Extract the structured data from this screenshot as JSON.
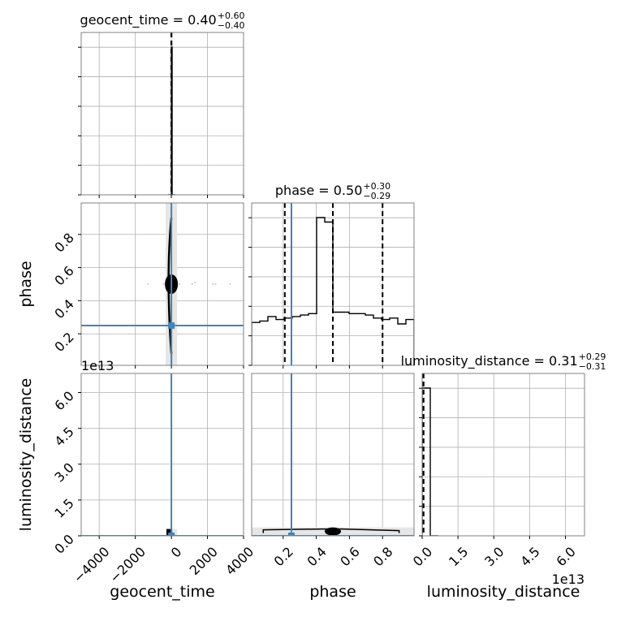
{
  "chart_data": {
    "type": "corner",
    "parameters": [
      "geocent_time",
      "phase",
      "luminosity_distance"
    ],
    "axis_labels": {
      "geocent_time": "geocent_time",
      "phase": "phase",
      "luminosity_distance": "luminosity_distance"
    },
    "ranges": {
      "geocent_time": [
        -5000,
        4000
      ],
      "phase": [
        0.01,
        0.99
      ],
      "luminosity_distance": [
        0,
        68000000000000.0
      ]
    },
    "truths": {
      "geocent_time": 0.0,
      "phase": 0.25,
      "luminosity_distance": 0.0
    },
    "ticks": {
      "geocent_time": {
        "values": [
          -4000,
          -2000,
          0,
          2000,
          4000
        ],
        "labels": [
          "−4000",
          "−2000",
          "0",
          "2000",
          "4000"
        ]
      },
      "phase": {
        "values": [
          0.2,
          0.4,
          0.6,
          0.8
        ],
        "labels": [
          "0.2",
          "0.4",
          "0.6",
          "0.8"
        ]
      },
      "luminosity_distance": {
        "values": [
          0,
          15000000000000.0,
          30000000000000.0,
          45000000000000.0,
          60000000000000.0
        ],
        "labels": [
          "0.0",
          "1.5",
          "3.0",
          "4.5",
          "6.0"
        ],
        "offset": "1e13"
      }
    },
    "titles": [
      {
        "param": "geocent_time",
        "text": "geocent_time = 0.40",
        "sup": "+0.60",
        "sub": "−0.40"
      },
      {
        "param": "phase",
        "text": "phase = 0.50",
        "sup": "+0.30",
        "sub": "−0.29"
      },
      {
        "param": "luminosity_distance",
        "text": "luminosity_distance = 0.31",
        "sup": "+0.29",
        "sub": "−0.31"
      }
    ],
    "marginals": {
      "geocent_time": {
        "bin_edges": [
          -180,
          0,
          40,
          220
        ],
        "counts": [
          0,
          1.0,
          0
        ],
        "quantiles": [
          0.0,
          0.4,
          1.0
        ]
      },
      "phase": {
        "bin_edges": [
          0.01,
          0.059,
          0.108,
          0.157,
          0.206,
          0.255,
          0.304,
          0.353,
          0.402,
          0.451,
          0.5,
          0.549,
          0.598,
          0.647,
          0.696,
          0.745,
          0.794,
          0.843,
          0.892,
          0.941,
          0.99
        ],
        "counts": [
          0.29,
          0.3,
          0.33,
          0.31,
          0.32,
          0.33,
          0.34,
          0.35,
          1.0,
          0.97,
          0.36,
          0.36,
          0.35,
          0.35,
          0.34,
          0.32,
          0.31,
          0.32,
          0.28,
          0.31
        ],
        "quantiles": [
          0.21,
          0.5,
          0.8
        ]
      },
      "luminosity_distance": {
        "bin_edges": [
          0,
          3400000000000.0,
          6800000000000.0
        ],
        "counts": [
          1.0,
          0.0
        ],
        "quantiles": [
          0.0,
          310000000000.0,
          600000000000.0
        ]
      }
    },
    "densities": [
      {
        "x": "geocent_time",
        "y": "phase",
        "core": {
          "x": 0,
          "y": 0.5
        },
        "x_spread": 180,
        "y_extent": [
          0.08,
          0.9
        ],
        "scatter": [
          [
            -1300,
            0.5
          ],
          [
            -440,
            0.5
          ],
          [
            450,
            0.5
          ],
          [
            1150,
            0.5
          ],
          [
            1300,
            0.51
          ],
          [
            2300,
            0.5
          ],
          [
            2450,
            0.5
          ],
          [
            3250,
            0.5
          ]
        ]
      },
      {
        "x": "geocent_time",
        "y": "luminosity_distance",
        "core": {
          "x": 0,
          "y": 1500000000000.0
        }
      },
      {
        "x": "phase",
        "y": "luminosity_distance",
        "core": {
          "x": 0.5,
          "y": 1500000000000.0
        },
        "x_extent": [
          0.08,
          0.9
        ]
      }
    ],
    "grid": true
  }
}
